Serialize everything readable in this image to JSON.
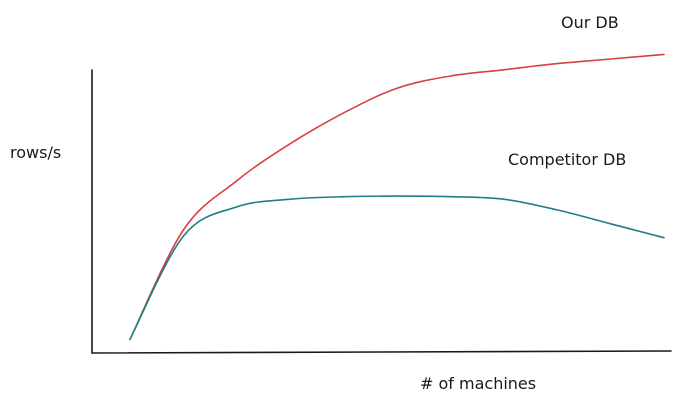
{
  "chart_data": {
    "type": "line",
    "title": "",
    "xlabel": "# of machines",
    "ylabel": "rows/s",
    "grid": false,
    "legend": "inline labels at line ends",
    "axis_ticks": false,
    "xlim": [
      0,
      10
    ],
    "ylim": [
      0,
      10
    ],
    "x": [
      0,
      1,
      2,
      3,
      4,
      5,
      6,
      7,
      8,
      9,
      10
    ],
    "series": [
      {
        "name": "Our DB",
        "color": "#d94040",
        "values": [
          0.25,
          3.8,
          5.4,
          6.6,
          7.6,
          8.4,
          8.8,
          9.0,
          9.2,
          9.35,
          9.5
        ]
      },
      {
        "name": "Competitor DB",
        "color": "#1f7f86",
        "values": [
          0.25,
          3.6,
          4.55,
          4.8,
          4.88,
          4.9,
          4.88,
          4.8,
          4.45,
          4.0,
          3.55
        ]
      }
    ]
  }
}
